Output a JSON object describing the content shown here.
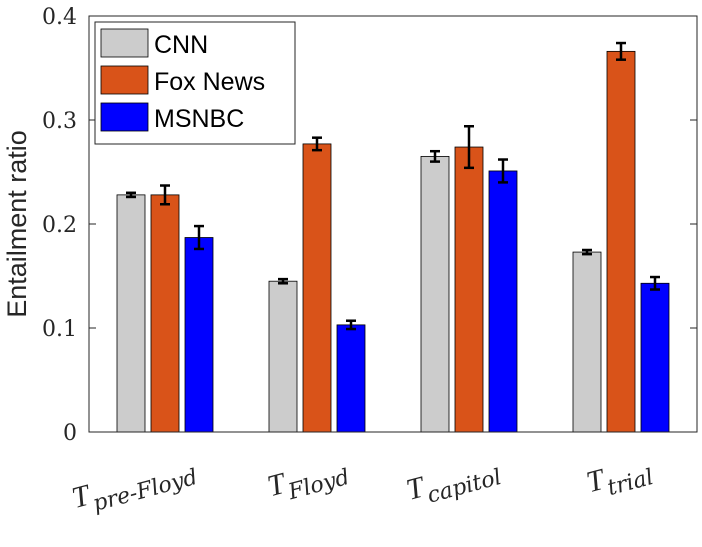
{
  "chart_data": {
    "type": "bar",
    "categories": [
      {
        "symbol": "T",
        "sub": "pre-Floyd"
      },
      {
        "symbol": "T",
        "sub": "Floyd"
      },
      {
        "symbol": "T",
        "sub": "capitol"
      },
      {
        "symbol": "T",
        "sub": "trial"
      }
    ],
    "series": [
      {
        "name": "CNN",
        "color": "#cccccc",
        "values": [
          0.228,
          0.145,
          0.265,
          0.173
        ],
        "err": [
          0.002,
          0.002,
          0.005,
          0.002
        ]
      },
      {
        "name": "Fox News",
        "color": "#d95319",
        "values": [
          0.228,
          0.277,
          0.274,
          0.366
        ],
        "err": [
          0.009,
          0.006,
          0.02,
          0.008
        ]
      },
      {
        "name": "MSNBC",
        "color": "#0000ff",
        "values": [
          0.187,
          0.103,
          0.251,
          0.143
        ],
        "err": [
          0.011,
          0.004,
          0.011,
          0.006
        ]
      }
    ],
    "ylabel": "Entailment ratio",
    "ylim": [
      0,
      0.4
    ],
    "yticks": [
      "0",
      "0.1",
      "0.2",
      "0.3",
      "0.4"
    ],
    "legend_position": "top-left",
    "grid": false
  }
}
